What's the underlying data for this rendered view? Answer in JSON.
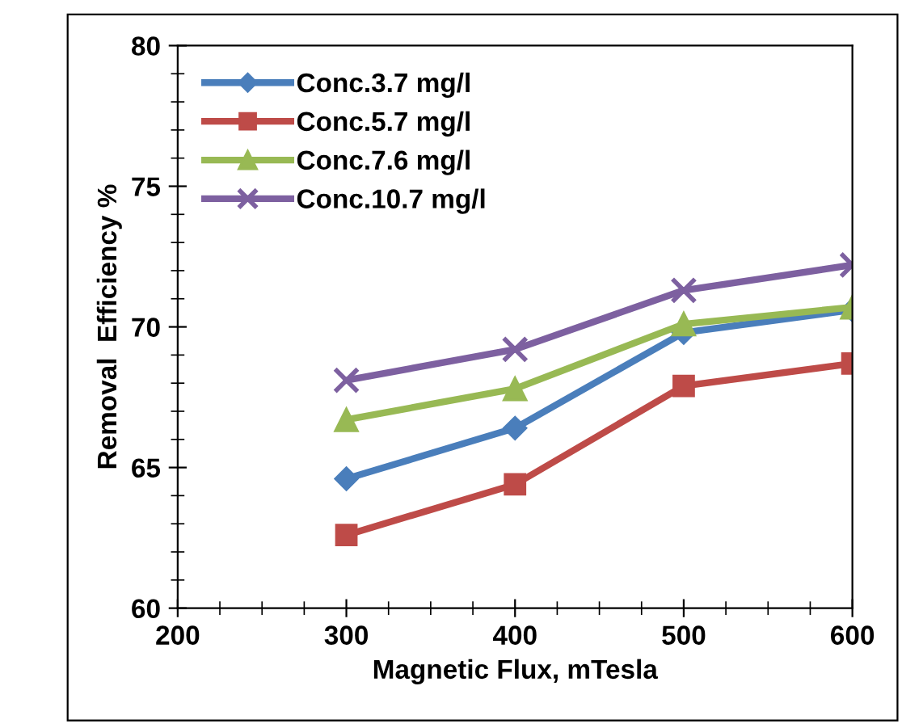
{
  "chart_data": {
    "type": "line",
    "xlabel": "Magnetic Flux, mTesla",
    "ylabel": "Removal  Efficiency %",
    "x": [
      300,
      400,
      500,
      600
    ],
    "series": [
      {
        "name": "Conc.3.7 mg/l",
        "color": "#4a7ebb",
        "marker": "diamond",
        "values": [
          64.6,
          66.4,
          69.8,
          70.6
        ]
      },
      {
        "name": "Conc.5.7 mg/l",
        "color": "#be4b48",
        "marker": "square",
        "values": [
          62.6,
          64.4,
          67.9,
          68.7
        ]
      },
      {
        "name": "Conc.7.6 mg/l",
        "color": "#98b954",
        "marker": "triangle",
        "values": [
          66.7,
          67.8,
          70.1,
          70.7
        ]
      },
      {
        "name": "Conc.10.7 mg/l",
        "color": "#7d60a0",
        "marker": "cross",
        "values": [
          68.1,
          69.2,
          71.3,
          72.2
        ]
      }
    ],
    "xlim": [
      200,
      600
    ],
    "xticks": [
      200,
      300,
      400,
      500,
      600
    ],
    "ylim": [
      60,
      80
    ],
    "yticks": [
      60,
      65,
      70,
      75,
      80
    ],
    "grid": false,
    "legend": "top left",
    "line_style": "solid"
  }
}
